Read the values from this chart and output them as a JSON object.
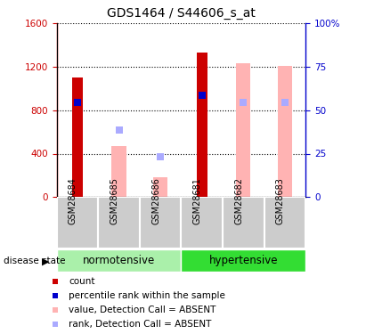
{
  "title": "GDS1464 / S44606_s_at",
  "samples": [
    "GSM28684",
    "GSM28685",
    "GSM28686",
    "GSM28681",
    "GSM28682",
    "GSM28683"
  ],
  "groups": [
    {
      "label": "normotensive",
      "indices": [
        0,
        1,
        2
      ],
      "color": "#aaf0aa"
    },
    {
      "label": "hypertensive",
      "indices": [
        3,
        4,
        5
      ],
      "color": "#33dd33"
    }
  ],
  "count_values": [
    1100,
    null,
    null,
    1330,
    null,
    null
  ],
  "value_absent": [
    null,
    470,
    185,
    null,
    1230,
    1205
  ],
  "rank_absent_left": [
    null,
    620,
    370,
    null,
    875,
    875
  ],
  "percentile_rank_left": [
    875,
    null,
    null,
    940,
    null,
    null
  ],
  "left_yaxis": {
    "min": 0,
    "max": 1600,
    "ticks": [
      0,
      400,
      800,
      1200,
      1600
    ],
    "color": "#cc0000"
  },
  "right_yaxis": {
    "min": 0,
    "max": 100,
    "ticks": [
      0,
      25,
      50,
      75,
      100
    ],
    "color": "#0000cc"
  },
  "colors": {
    "count": "#cc0000",
    "percentile_rank": "#0000cc",
    "value_absent": "#ffb3b3",
    "rank_absent": "#aaaaff"
  },
  "count_bar_width": 0.25,
  "absent_bar_width": 0.35,
  "group_label": "disease state",
  "background_color": "#ffffff",
  "plot_bg": "#ffffff",
  "grid_color": "#000000",
  "sample_bg": "#cccccc",
  "marker_size": 35
}
